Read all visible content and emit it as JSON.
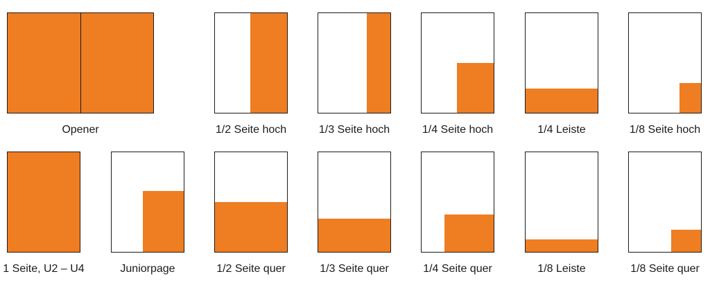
{
  "accent_color": "#ef7d22",
  "formats": [
    {
      "label": "Opener"
    },
    {
      "label": "1/2 Seite hoch"
    },
    {
      "label": "1/3 Seite hoch"
    },
    {
      "label": "1/4 Seite hoch"
    },
    {
      "label": "1/4 Leiste"
    },
    {
      "label": "1/8 Seite hoch"
    },
    {
      "label": "1 Seite, U2 – U4"
    },
    {
      "label": "Juniorpage"
    },
    {
      "label": "1/2 Seite quer"
    },
    {
      "label": "1/3 Seite quer"
    },
    {
      "label": "1/4 Seite quer"
    },
    {
      "label": "1/8 Leiste"
    },
    {
      "label": "1/8 Seite quer"
    }
  ]
}
